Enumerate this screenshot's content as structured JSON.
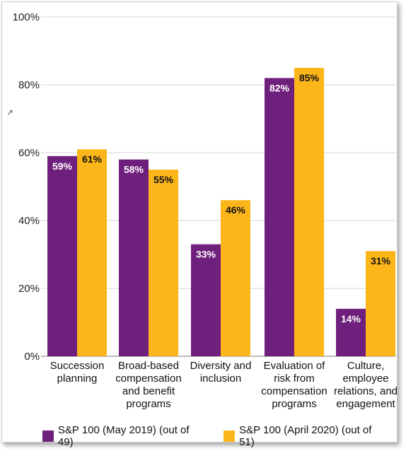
{
  "chart_data": {
    "type": "bar",
    "categories": [
      [
        "Succession",
        "planning"
      ],
      [
        "Broad-based",
        "compensation",
        "and benefit",
        "programs"
      ],
      [
        "Diversity and",
        "inclusion"
      ],
      [
        "Evaluation of",
        "risk from",
        "compensation",
        "programs"
      ],
      [
        "Culture,",
        "employee",
        "relations, and",
        "engagement"
      ]
    ],
    "series": [
      {
        "name": "S&P 100 (May 2019) (out of 49)",
        "values": [
          59,
          58,
          33,
          82,
          14
        ],
        "labels": [
          "59%",
          "58%",
          "33%",
          "82%",
          "14%"
        ],
        "color": "#6f1f7c",
        "label_color": "#ffffff"
      },
      {
        "name": "S&P 100 (April 2020) (out of 51)",
        "values": [
          61,
          55,
          46,
          85,
          31
        ],
        "labels": [
          "61%",
          "55%",
          "46%",
          "85%",
          "31%"
        ],
        "color": "#fcb61a",
        "label_color": "#111111"
      }
    ],
    "y_ticks": [
      "0%",
      "20%",
      "40%",
      "60%",
      "80%",
      "100%"
    ],
    "ylim": [
      0,
      100
    ],
    "grid": true,
    "legend_position": "bottom",
    "title": "",
    "xlabel": "",
    "ylabel": ""
  }
}
